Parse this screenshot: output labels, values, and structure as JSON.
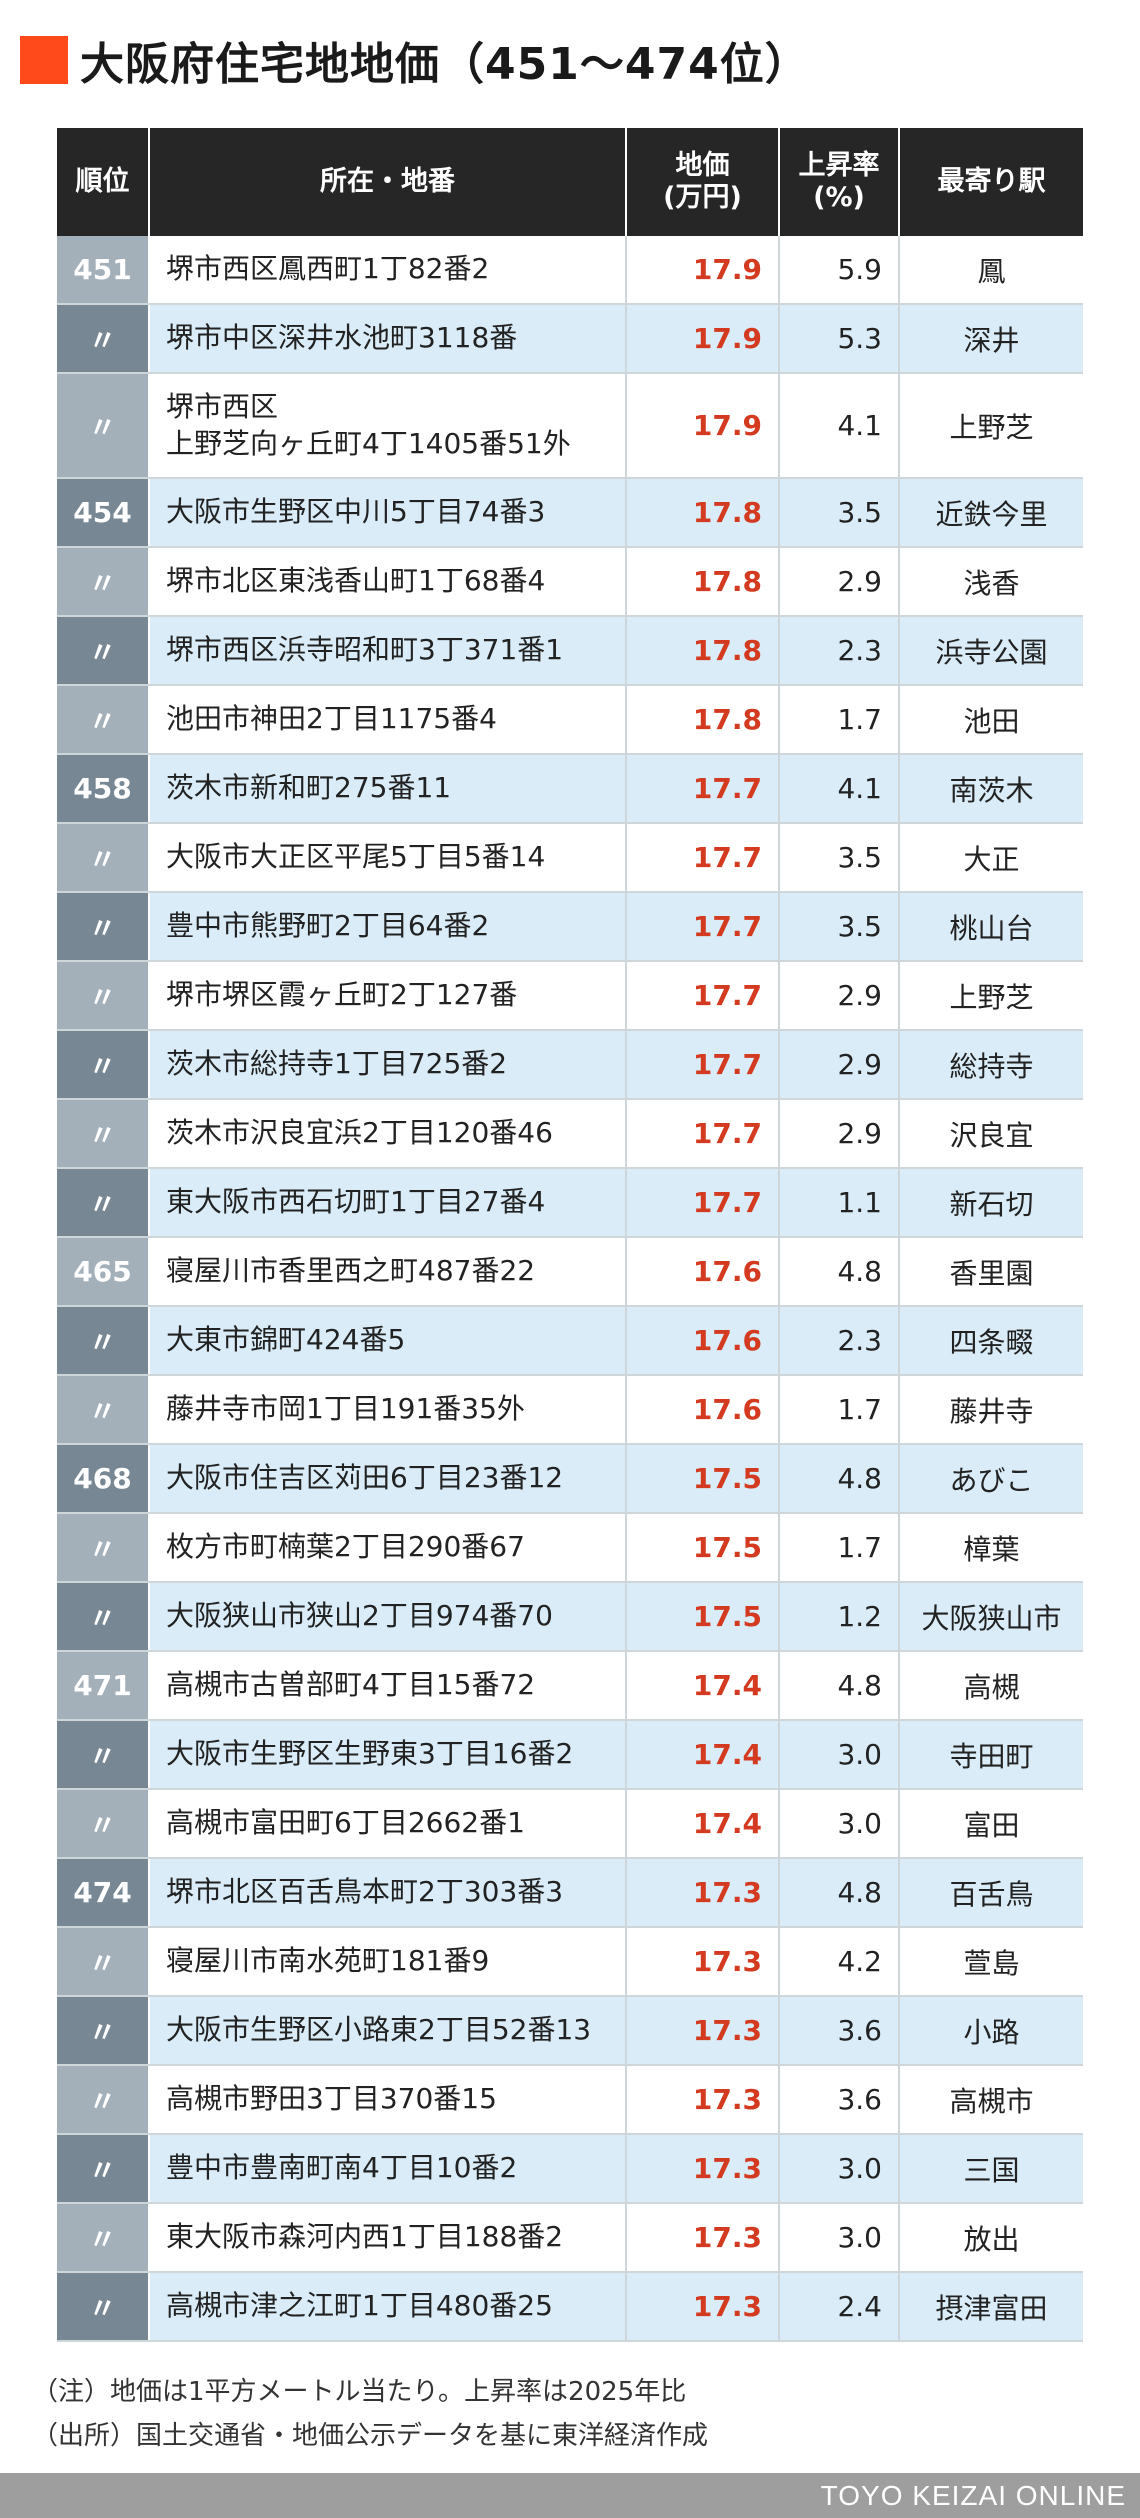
{
  "title": "大阪府住宅地地価（451〜474位）",
  "headers": {
    "rank": "順位",
    "address": "所在・地番",
    "price_line1": "地価",
    "price_line2": "(万円)",
    "rate_line1": "上昇率",
    "rate_line2": "(%)",
    "station": "最寄り駅"
  },
  "rows": [
    {
      "rank": "451",
      "address": [
        "堺市西区鳳西町1丁82番2"
      ],
      "price": "17.9",
      "rate": "5.9",
      "station": "鳳"
    },
    {
      "rank": "〃",
      "address": [
        "堺市中区深井水池町3118番"
      ],
      "price": "17.9",
      "rate": "5.3",
      "station": "深井"
    },
    {
      "rank": "〃",
      "address": [
        "堺市西区",
        "上野芝向ヶ丘町4丁1405番51外"
      ],
      "price": "17.9",
      "rate": "4.1",
      "station": "上野芝"
    },
    {
      "rank": "454",
      "address": [
        "大阪市生野区中川5丁目74番3"
      ],
      "price": "17.8",
      "rate": "3.5",
      "station": "近鉄今里"
    },
    {
      "rank": "〃",
      "address": [
        "堺市北区東浅香山町1丁68番4"
      ],
      "price": "17.8",
      "rate": "2.9",
      "station": "浅香"
    },
    {
      "rank": "〃",
      "address": [
        "堺市西区浜寺昭和町3丁371番1"
      ],
      "price": "17.8",
      "rate": "2.3",
      "station": "浜寺公園"
    },
    {
      "rank": "〃",
      "address": [
        "池田市神田2丁目1175番4"
      ],
      "price": "17.8",
      "rate": "1.7",
      "station": "池田"
    },
    {
      "rank": "458",
      "address": [
        "茨木市新和町275番11"
      ],
      "price": "17.7",
      "rate": "4.1",
      "station": "南茨木"
    },
    {
      "rank": "〃",
      "address": [
        "大阪市大正区平尾5丁目5番14"
      ],
      "price": "17.7",
      "rate": "3.5",
      "station": "大正"
    },
    {
      "rank": "〃",
      "address": [
        "豊中市熊野町2丁目64番2"
      ],
      "price": "17.7",
      "rate": "3.5",
      "station": "桃山台"
    },
    {
      "rank": "〃",
      "address": [
        "堺市堺区霞ヶ丘町2丁127番"
      ],
      "price": "17.7",
      "rate": "2.9",
      "station": "上野芝"
    },
    {
      "rank": "〃",
      "address": [
        "茨木市総持寺1丁目725番2"
      ],
      "price": "17.7",
      "rate": "2.9",
      "station": "総持寺"
    },
    {
      "rank": "〃",
      "address": [
        "茨木市沢良宜浜2丁目120番46"
      ],
      "price": "17.7",
      "rate": "2.9",
      "station": "沢良宜"
    },
    {
      "rank": "〃",
      "address": [
        "東大阪市西石切町1丁目27番4"
      ],
      "price": "17.7",
      "rate": "1.1",
      "station": "新石切"
    },
    {
      "rank": "465",
      "address": [
        "寝屋川市香里西之町487番22"
      ],
      "price": "17.6",
      "rate": "4.8",
      "station": "香里園"
    },
    {
      "rank": "〃",
      "address": [
        "大東市錦町424番5"
      ],
      "price": "17.6",
      "rate": "2.3",
      "station": "四条畷"
    },
    {
      "rank": "〃",
      "address": [
        "藤井寺市岡1丁目191番35外"
      ],
      "price": "17.6",
      "rate": "1.7",
      "station": "藤井寺"
    },
    {
      "rank": "468",
      "address": [
        "大阪市住吉区苅田6丁目23番12"
      ],
      "price": "17.5",
      "rate": "4.8",
      "station": "あびこ"
    },
    {
      "rank": "〃",
      "address": [
        "枚方市町楠葉2丁目290番67"
      ],
      "price": "17.5",
      "rate": "1.7",
      "station": "樟葉"
    },
    {
      "rank": "〃",
      "address": [
        "大阪狭山市狭山2丁目974番70"
      ],
      "price": "17.5",
      "rate": "1.2",
      "station": "大阪狭山市"
    },
    {
      "rank": "471",
      "address": [
        "高槻市古曽部町4丁目15番72"
      ],
      "price": "17.4",
      "rate": "4.8",
      "station": "高槻"
    },
    {
      "rank": "〃",
      "address": [
        "大阪市生野区生野東3丁目16番2"
      ],
      "price": "17.4",
      "rate": "3.0",
      "station": "寺田町"
    },
    {
      "rank": "〃",
      "address": [
        "高槻市富田町6丁目2662番1"
      ],
      "price": "17.4",
      "rate": "3.0",
      "station": "富田"
    },
    {
      "rank": "474",
      "address": [
        "堺市北区百舌鳥本町2丁303番3"
      ],
      "price": "17.3",
      "rate": "4.8",
      "station": "百舌鳥"
    },
    {
      "rank": "〃",
      "address": [
        "寝屋川市南水苑町181番9"
      ],
      "price": "17.3",
      "rate": "4.2",
      "station": "萱島"
    },
    {
      "rank": "〃",
      "address": [
        "大阪市生野区小路東2丁目52番13"
      ],
      "price": "17.3",
      "rate": "3.6",
      "station": "小路"
    },
    {
      "rank": "〃",
      "address": [
        "高槻市野田3丁目370番15"
      ],
      "price": "17.3",
      "rate": "3.6",
      "station": "高槻市"
    },
    {
      "rank": "〃",
      "address": [
        "豊中市豊南町南4丁目10番2"
      ],
      "price": "17.3",
      "rate": "3.0",
      "station": "三国"
    },
    {
      "rank": "〃",
      "address": [
        "東大阪市森河内西1丁目188番2"
      ],
      "price": "17.3",
      "rate": "3.0",
      "station": "放出"
    },
    {
      "rank": "〃",
      "address": [
        "高槻市津之江町1丁目480番25"
      ],
      "price": "17.3",
      "rate": "2.4",
      "station": "摂津富田"
    }
  ],
  "notes": {
    "note1": "（注）地価は1平方メートル当たり。上昇率は2025年比",
    "note2": "（出所）国土交通省・地価公示データを基に東洋経済作成"
  },
  "footer": "TOYO KEIZAI ONLINE",
  "colors": {
    "accent": "#ff4a1c",
    "price": "#d33a1f",
    "header_bg": "#262626",
    "row_alt": "#d9ecf7"
  }
}
